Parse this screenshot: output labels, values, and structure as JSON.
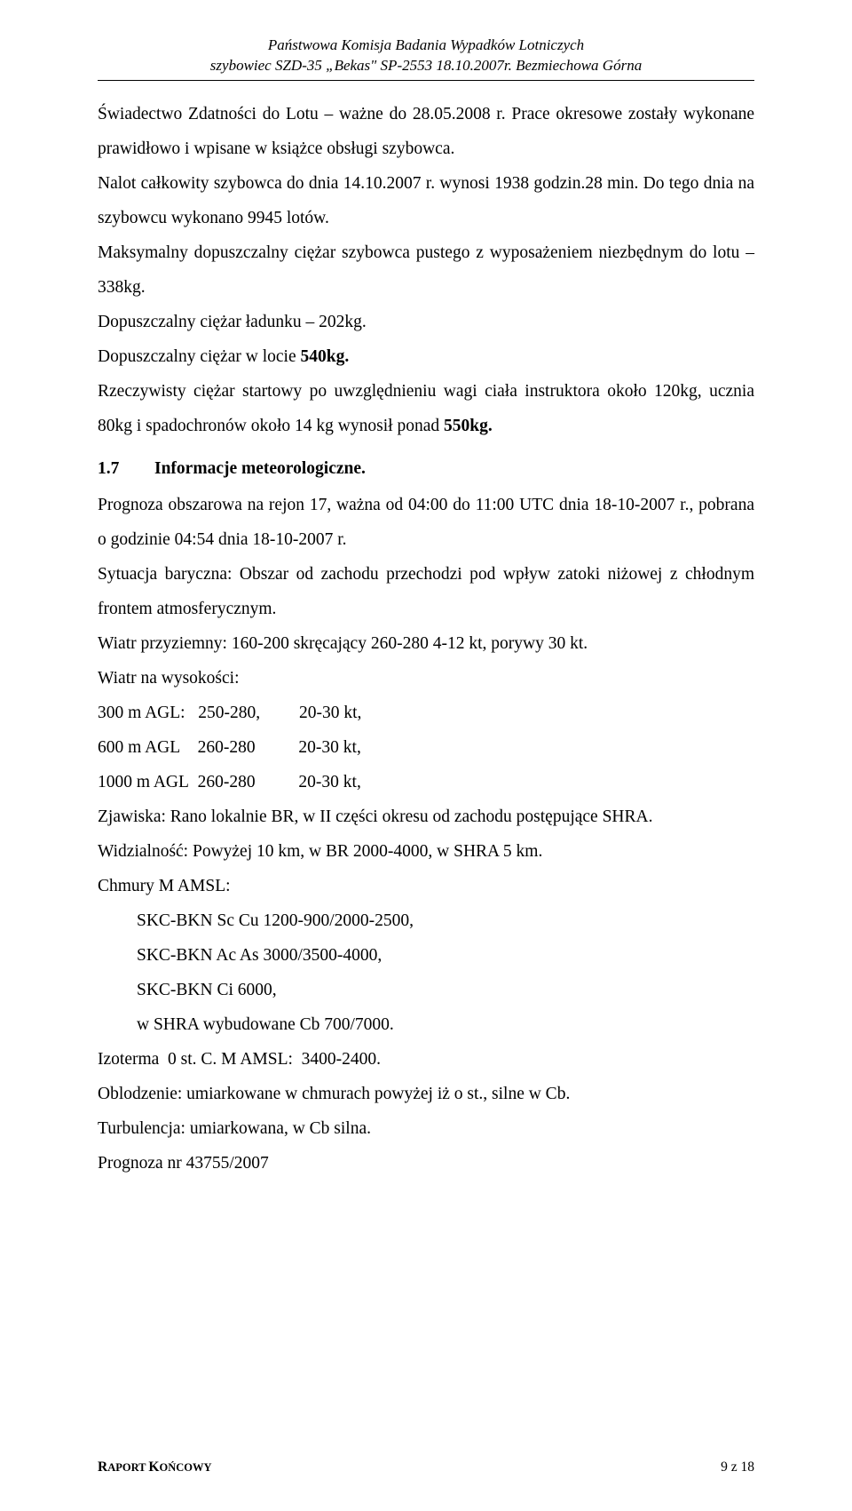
{
  "header": {
    "line1": "Państwowa Komisja Badania Wypadków Lotniczych",
    "line2": "szybowiec SZD-35 „Bekas\" SP-2553 18.10.2007r. Bezmiechowa Górna"
  },
  "body": {
    "p1": "Świadectwo Zdatności do Lotu – ważne do 28.05.2008 r. Prace okresowe zostały wykonane prawidłowo i wpisane w książce obsługi szybowca.",
    "p2": "Nalot całkowity szybowca do dnia 14.10.2007 r. wynosi 1938 godzin.28 min. Do tego dnia na szybowcu wykonano 9945 lotów.",
    "p3": "Maksymalny dopuszczalny ciężar szybowca pustego z wyposażeniem niezbędnym do lotu – 338kg.",
    "p4": "Dopuszczalny ciężar ładunku – 202kg.",
    "p5_prefix": "Dopuszczalny ciężar w locie ",
    "p5_bold": "540kg.",
    "p6_part1": "Rzeczywisty ciężar startowy po uwzględnieniu wagi ciała instruktora około 120kg, ucznia 80kg i spadochronów około 14 kg wynosił ponad ",
    "p6_bold": "550kg."
  },
  "section": {
    "num": "1.7",
    "title": "Informacje meteorologiczne."
  },
  "meteo": {
    "p1": "Prognoza obszarowa na rejon 17, ważna od 04:00 do 11:00 UTC dnia 18-10-2007 r., pobrana o godzinie 04:54 dnia 18-10-2007 r.",
    "p2": "Sytuacja baryczna: Obszar od zachodu przechodzi pod wpływ zatoki niżowej z chłodnym frontem atmosferycznym.",
    "p3": "Wiatr przyziemny: 160-200 skręcający 260-280 4-12 kt, porywy 30 kt.",
    "p4": "Wiatr na wysokości:",
    "w1": "300 m AGL:   250-280,         20-30 kt,",
    "w2": "600 m AGL    260-280          20-30 kt,",
    "w3": "1000 m AGL  260-280          20-30 kt,",
    "p5": "Zjawiska: Rano lokalnie BR, w II części okresu od zachodu postępujące SHRA.",
    "p6": "Widzialność: Powyżej 10 km, w BR 2000-4000, w SHRA 5 km.",
    "p7": "Chmury M AMSL:",
    "c1": "SKC-BKN Sc Cu 1200-900/2000-2500,",
    "c2": "SKC-BKN Ac As 3000/3500-4000,",
    "c3": "SKC-BKN Ci 6000,",
    "c4": "w SHRA wybudowane Cb 700/7000.",
    "p8": "Izoterma  0 st. C. M AMSL:  3400-2400.",
    "p9": "Oblodzenie: umiarkowane w chmurach powyżej iż o st., silne w Cb.",
    "p10": "Turbulencja: umiarkowana, w Cb silna.",
    "p11": "Prognoza nr 43755/2007"
  },
  "footer": {
    "left_pre": "R",
    "left_small": "APORT ",
    "left_pre2": "K",
    "left_small2": "OŃCOWY",
    "right": "9 z 18"
  }
}
